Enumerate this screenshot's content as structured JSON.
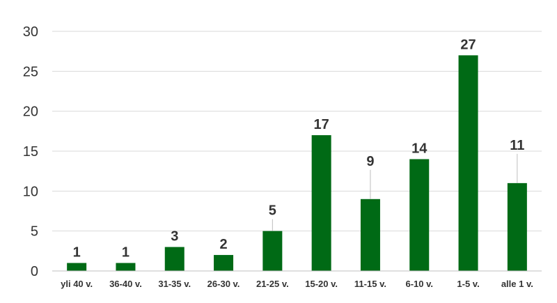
{
  "chart_data": {
    "type": "bar",
    "title": "",
    "xlabel": "",
    "ylabel": "",
    "ylim": [
      0,
      30
    ],
    "yticks": [
      "0",
      "5",
      "10",
      "15",
      "20",
      "25",
      "30"
    ],
    "grid": true,
    "categories": [
      "yli 40 v.",
      "36-40 v.",
      "31-35 v.",
      "26-30 v.",
      "21-25 v.",
      "15-20 v.",
      "11-15 v.",
      "6-10 v.",
      "1-5 v.",
      "alle 1 v."
    ],
    "values": [
      1,
      1,
      3,
      2,
      5,
      17,
      9,
      14,
      27,
      11
    ],
    "data_labels": [
      "1",
      "1",
      "3",
      "2",
      "5",
      "17",
      "9",
      "14",
      "27",
      "11"
    ],
    "bar_color": "#006a15",
    "leader_lines": [
      false,
      false,
      false,
      false,
      true,
      false,
      true,
      false,
      false,
      true
    ]
  }
}
